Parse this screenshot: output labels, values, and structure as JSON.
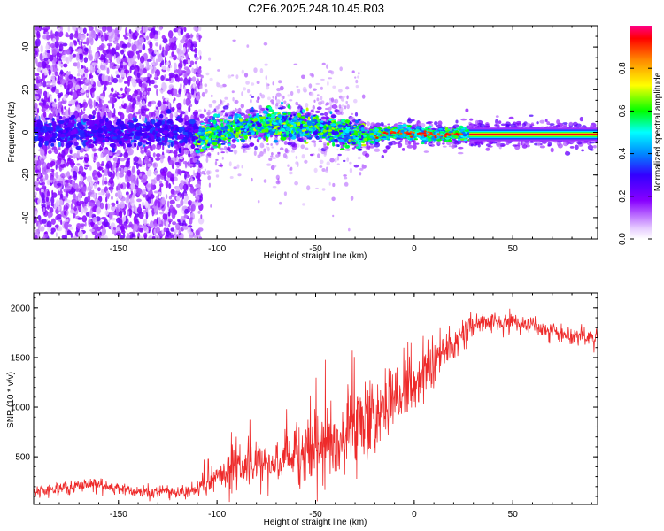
{
  "title": "C2E6.2025.248.10.45.R03",
  "chart_data": [
    {
      "type": "heatmap",
      "title": "C2E6.2025.248.10.45.R03",
      "xlabel": "Height of straight line (km)",
      "ylabel": "Frequency (Hz)",
      "xlim": [
        -193,
        93
      ],
      "ylim": [
        -50,
        50
      ],
      "x_ticks": [
        -150,
        -100,
        -50,
        0,
        50
      ],
      "y_ticks": [
        -40,
        -20,
        0,
        20,
        40
      ],
      "x_tick_labels": [
        "-150",
        "-100",
        "-50",
        "0",
        "50"
      ],
      "y_tick_labels": [
        "-40",
        "-20",
        "0",
        "20",
        "40"
      ],
      "colorbar": {
        "label": "Normalized spectral amplitude",
        "range": [
          0,
          1
        ],
        "ticks": [
          0.0,
          0.2,
          0.4,
          0.6,
          0.8
        ],
        "tick_labels": [
          "0.0",
          "0.2",
          "0.4",
          "0.6",
          "0.8"
        ]
      },
      "centerline_freq_hz": [
        {
          "x": -110,
          "y": -3
        },
        {
          "x": -90,
          "y": 2
        },
        {
          "x": -70,
          "y": 4
        },
        {
          "x": -50,
          "y": 2
        },
        {
          "x": -35,
          "y": 0
        },
        {
          "x": -25,
          "y": -2
        },
        {
          "x": -10,
          "y": 0
        },
        {
          "x": 10,
          "y": -1
        },
        {
          "x": 30,
          "y": -1
        },
        {
          "x": 93,
          "y": -1
        }
      ]
    },
    {
      "type": "line",
      "xlabel": "Height of straight line (km)",
      "ylabel": "SNR (10 * v/v)",
      "xlim": [
        -193,
        93
      ],
      "ylim": [
        20,
        2150
      ],
      "x_ticks": [
        -150,
        -100,
        -50,
        0,
        50
      ],
      "y_ticks": [
        500,
        1000,
        1500,
        2000
      ],
      "x_tick_labels": [
        "-150",
        "-100",
        "-50",
        "0",
        "50"
      ],
      "y_tick_labels": [
        "500",
        "1000",
        "1500",
        "2000"
      ],
      "series": [
        {
          "name": "SNR",
          "color": "#ee2a2a",
          "x": [
            -193,
            -180,
            -170,
            -160,
            -150,
            -140,
            -130,
            -120,
            -110,
            -100,
            -90,
            -80,
            -70,
            -60,
            -50,
            -40,
            -30,
            -20,
            -10,
            0,
            10,
            20,
            30,
            40,
            50,
            60,
            70,
            80,
            93
          ],
          "y": [
            160,
            180,
            200,
            230,
            180,
            150,
            140,
            140,
            160,
            300,
            380,
            400,
            450,
            500,
            580,
            650,
            750,
            880,
            1050,
            1250,
            1450,
            1650,
            1850,
            1880,
            1860,
            1820,
            1760,
            1720,
            1700
          ]
        }
      ]
    }
  ]
}
